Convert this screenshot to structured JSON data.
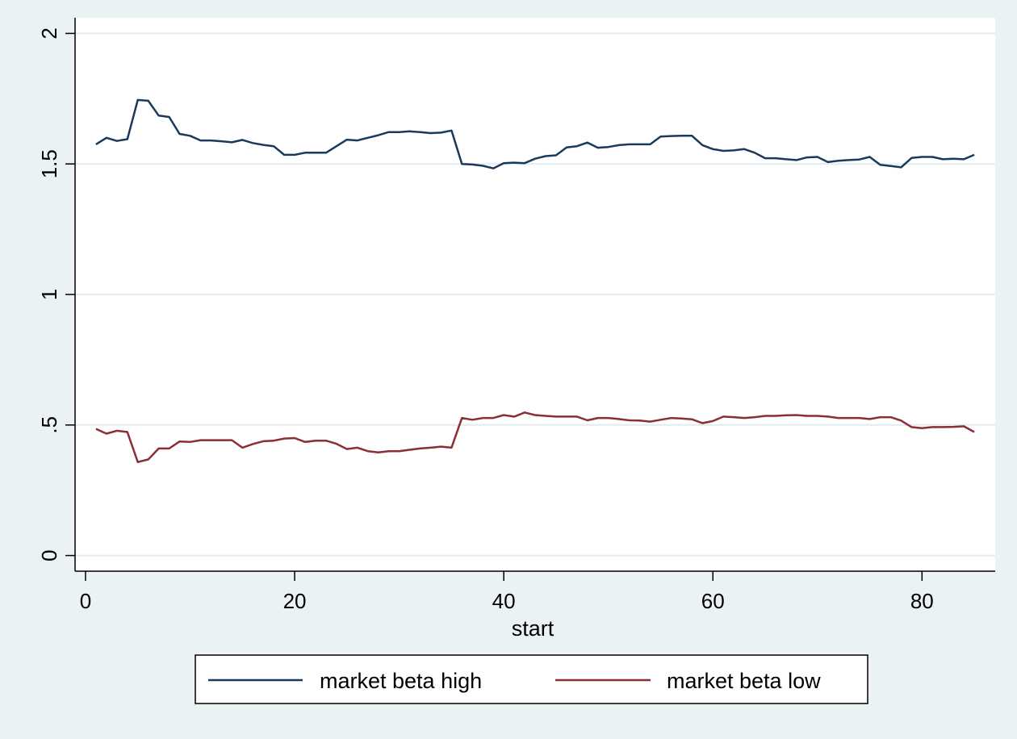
{
  "chart_data": {
    "type": "line",
    "title": "",
    "xlabel": "start",
    "ylabel": "",
    "xlim": [
      -1,
      87
    ],
    "ylim": [
      -0.06,
      2.06
    ],
    "xticks": [
      0,
      20,
      40,
      60,
      80
    ],
    "yticks": [
      0,
      0.5,
      1,
      1.5,
      2
    ],
    "ytick_labels": [
      "0",
      ".5",
      "1",
      "1.5",
      "2"
    ],
    "grid": true,
    "legend_position": "bottom",
    "x": [
      1,
      2,
      3,
      4,
      5,
      6,
      7,
      8,
      9,
      10,
      11,
      12,
      13,
      14,
      15,
      16,
      17,
      18,
      19,
      20,
      21,
      22,
      23,
      24,
      25,
      26,
      27,
      28,
      29,
      30,
      31,
      32,
      33,
      34,
      35,
      36,
      37,
      38,
      39,
      40,
      41,
      42,
      43,
      44,
      45,
      46,
      47,
      48,
      49,
      50,
      51,
      52,
      53,
      54,
      55,
      56,
      57,
      58,
      59,
      60,
      61,
      62,
      63,
      64,
      65,
      66,
      67,
      68,
      69,
      70,
      71,
      72,
      73,
      74,
      75,
      76,
      77,
      78,
      79,
      80,
      81,
      82,
      83,
      84,
      85
    ],
    "series": [
      {
        "name": "market beta high",
        "color": "#1a3a5c",
        "values": [
          1.575,
          1.6,
          1.588,
          1.595,
          1.745,
          1.742,
          1.685,
          1.68,
          1.615,
          1.608,
          1.59,
          1.59,
          1.587,
          1.583,
          1.592,
          1.58,
          1.573,
          1.568,
          1.535,
          1.535,
          1.543,
          1.543,
          1.543,
          1.568,
          1.593,
          1.59,
          1.6,
          1.61,
          1.622,
          1.622,
          1.625,
          1.622,
          1.618,
          1.62,
          1.628,
          1.5,
          1.498,
          1.493,
          1.483,
          1.503,
          1.505,
          1.503,
          1.52,
          1.53,
          1.533,
          1.563,
          1.568,
          1.582,
          1.562,
          1.565,
          1.572,
          1.575,
          1.575,
          1.575,
          1.605,
          1.607,
          1.608,
          1.608,
          1.572,
          1.557,
          1.55,
          1.552,
          1.557,
          1.543,
          1.522,
          1.522,
          1.518,
          1.515,
          1.525,
          1.527,
          1.507,
          1.512,
          1.515,
          1.517,
          1.527,
          1.497,
          1.492,
          1.487,
          1.523,
          1.527,
          1.527,
          1.518,
          1.52,
          1.518,
          1.535
        ]
      },
      {
        "name": "market beta low",
        "color": "#8b2e35",
        "values": [
          0.485,
          0.467,
          0.478,
          0.473,
          0.358,
          0.368,
          0.41,
          0.41,
          0.437,
          0.435,
          0.442,
          0.442,
          0.442,
          0.442,
          0.413,
          0.427,
          0.438,
          0.44,
          0.448,
          0.45,
          0.435,
          0.44,
          0.44,
          0.428,
          0.408,
          0.413,
          0.4,
          0.395,
          0.4,
          0.4,
          0.405,
          0.41,
          0.413,
          0.417,
          0.413,
          0.527,
          0.52,
          0.527,
          0.527,
          0.538,
          0.532,
          0.548,
          0.538,
          0.535,
          0.532,
          0.532,
          0.532,
          0.518,
          0.527,
          0.527,
          0.523,
          0.518,
          0.517,
          0.513,
          0.52,
          0.527,
          0.525,
          0.522,
          0.507,
          0.515,
          0.532,
          0.53,
          0.527,
          0.53,
          0.535,
          0.535,
          0.537,
          0.538,
          0.535,
          0.535,
          0.532,
          0.527,
          0.527,
          0.527,
          0.523,
          0.53,
          0.53,
          0.517,
          0.492,
          0.488,
          0.492,
          0.492,
          0.493,
          0.495,
          0.473
        ]
      }
    ]
  }
}
